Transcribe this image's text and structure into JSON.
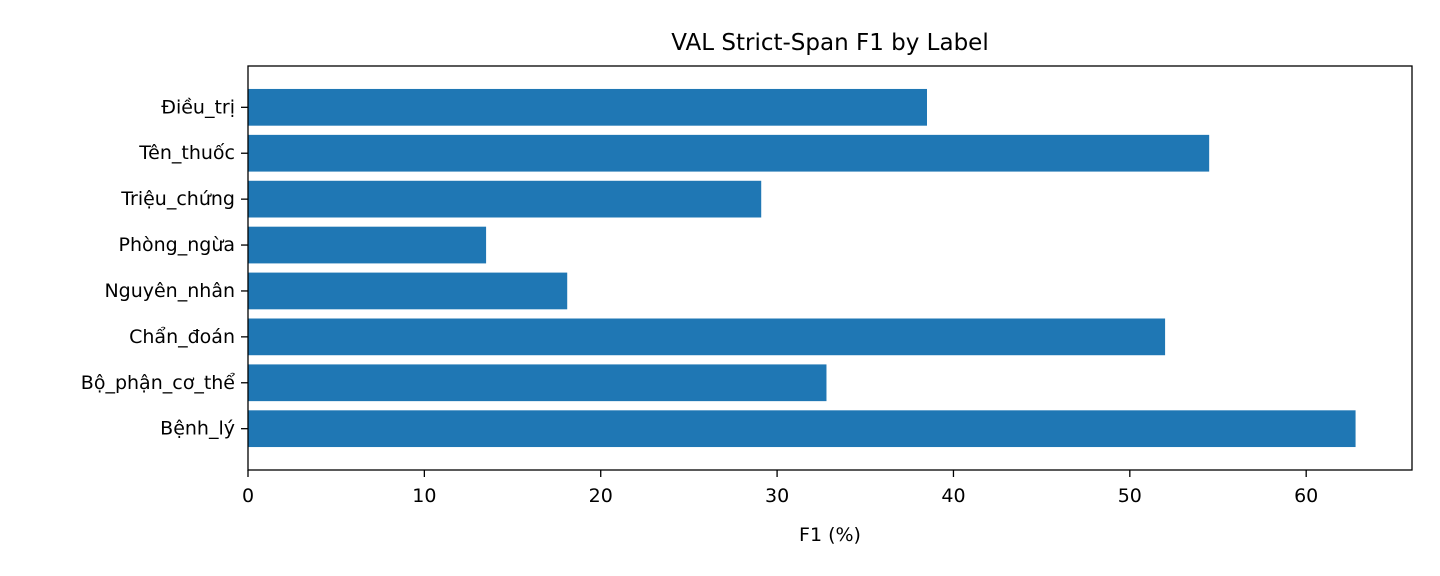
{
  "chart_data": {
    "type": "bar",
    "orientation": "horizontal",
    "title": "VAL Strict-Span F1 by Label",
    "xlabel": "F1 (%)",
    "ylabel": "",
    "xlim": [
      0,
      66
    ],
    "x_ticks": [
      0,
      10,
      20,
      30,
      40,
      50,
      60
    ],
    "grid": false,
    "bar_color": "#1f77b4",
    "categories": [
      "Bệnh_lý",
      "Bộ_phận_cơ_thể",
      "Chẩn_đoán",
      "Nguyên_nhân",
      "Phòng_ngừa",
      "Triệu_chứng",
      "Tên_thuốc",
      "Điều_trị"
    ],
    "values": [
      62.8,
      32.8,
      52.0,
      18.1,
      13.5,
      29.1,
      54.5,
      38.5
    ]
  }
}
